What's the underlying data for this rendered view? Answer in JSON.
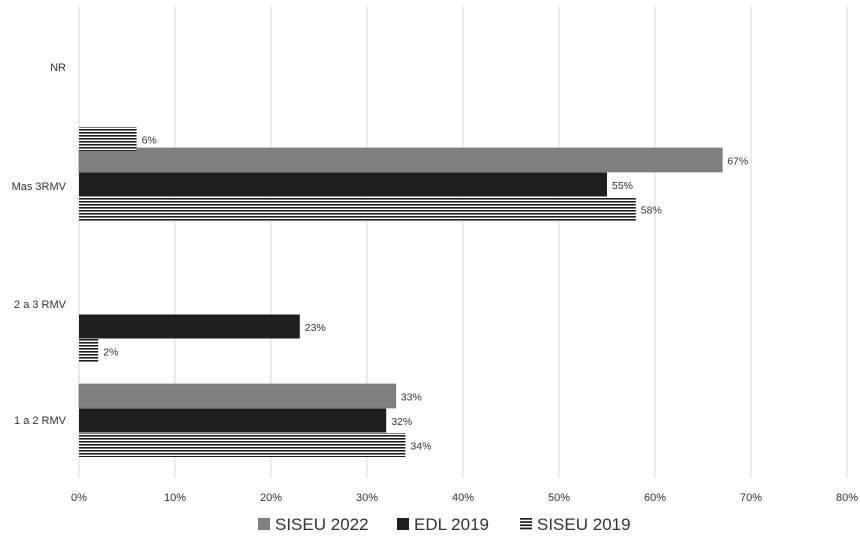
{
  "chart_data": {
    "type": "bar",
    "orientation": "horizontal",
    "categories": [
      "1 a 2 RMV",
      "2 a 3 RMV",
      "Mas 3RMV",
      "NR"
    ],
    "series": [
      {
        "name": "SISEU 2022",
        "values": [
          33,
          null,
          67,
          null
        ],
        "labels": [
          "33%",
          "",
          "67%",
          ""
        ],
        "color": "#808080",
        "pattern": "solid"
      },
      {
        "name": "EDL 2019",
        "values": [
          32,
          23,
          55,
          null
        ],
        "labels": [
          "32%",
          "23%",
          "55%",
          ""
        ],
        "color": "#1e1e1e",
        "pattern": "solid"
      },
      {
        "name": "SISEU 2019",
        "values": [
          34,
          2,
          58,
          6
        ],
        "labels": [
          "34%",
          "2%",
          "58%",
          "6%"
        ],
        "color": "#1e1e1e",
        "pattern": "horizontal-stripes"
      }
    ],
    "xlim": [
      0,
      80
    ],
    "xticks": [
      0,
      10,
      20,
      30,
      40,
      50,
      60,
      70,
      80
    ],
    "xtick_labels": [
      "0%",
      "10%",
      "20%",
      "30%",
      "40%",
      "50%",
      "60%",
      "70%",
      "80%"
    ],
    "grid": "vertical",
    "legend": "bottom"
  }
}
